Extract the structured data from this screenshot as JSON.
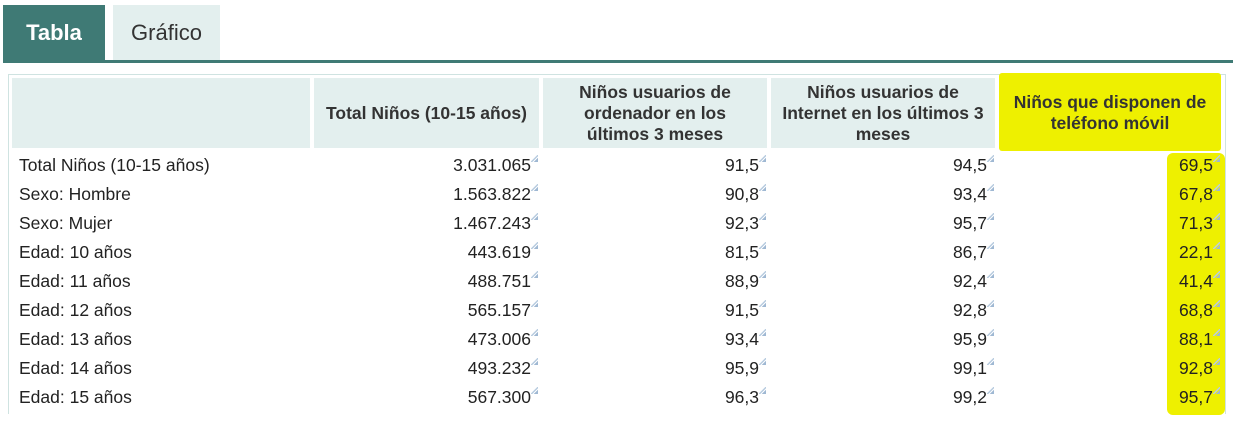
{
  "tabs": [
    {
      "label": "Tabla",
      "active": true
    },
    {
      "label": "Gráfico",
      "active": false
    }
  ],
  "colors": {
    "accent": "#3f7a75",
    "header_bg": "#e3efee",
    "highlight": "#eef000"
  },
  "table": {
    "header": {
      "col0": "",
      "col1": "Total Niños (10-15 años)",
      "col2": "Niños usuarios de ordenador en los últimos 3 meses",
      "col3": "Niños usuarios de Internet en los últimos 3 meses",
      "col4": "Niños que disponen de teléfono móvil"
    },
    "rows": [
      {
        "label": "Total Niños (10-15 años)",
        "total": "3.031.065",
        "ordenador": "91,5",
        "internet": "94,5",
        "movil": "69,5"
      },
      {
        "label": "Sexo: Hombre",
        "total": "1.563.822",
        "ordenador": "90,8",
        "internet": "93,4",
        "movil": "67,8"
      },
      {
        "label": "Sexo: Mujer",
        "total": "1.467.243",
        "ordenador": "92,3",
        "internet": "95,7",
        "movil": "71,3"
      },
      {
        "label": "Edad: 10 años",
        "total": "443.619",
        "ordenador": "81,5",
        "internet": "86,7",
        "movil": "22,1"
      },
      {
        "label": "Edad: 11 años",
        "total": "488.751",
        "ordenador": "88,9",
        "internet": "92,4",
        "movil": "41,4"
      },
      {
        "label": "Edad: 12 años",
        "total": "565.157",
        "ordenador": "91,5",
        "internet": "92,8",
        "movil": "68,8"
      },
      {
        "label": "Edad: 13 años",
        "total": "473.006",
        "ordenador": "93,4",
        "internet": "95,9",
        "movil": "88,1"
      },
      {
        "label": "Edad: 14 años",
        "total": "493.232",
        "ordenador": "95,9",
        "internet": "99,1",
        "movil": "92,8"
      },
      {
        "label": "Edad: 15 años",
        "total": "567.300",
        "ordenador": "96,3",
        "internet": "99,2",
        "movil": "95,7"
      }
    ]
  }
}
